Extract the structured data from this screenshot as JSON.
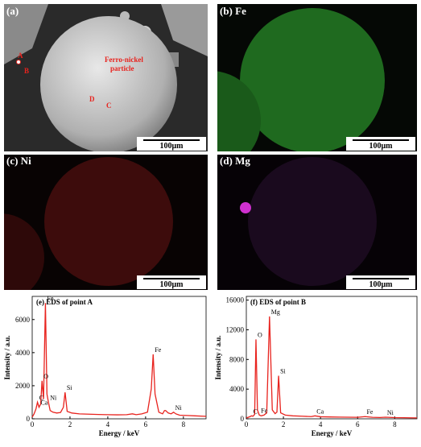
{
  "panels": [
    {
      "label": "(a)",
      "scale_bar": "100μm",
      "points": [
        "A",
        "B",
        "C",
        "D"
      ],
      "particle_label": [
        "Ferro-nickel",
        "particle"
      ]
    },
    {
      "label": "(b) Fe",
      "scale_bar": "100μm"
    },
    {
      "label": "(c) Ni",
      "scale_bar": "100μm"
    },
    {
      "label": "(d) Mg",
      "scale_bar": "100μm"
    }
  ],
  "chart_data": [
    {
      "type": "line",
      "title": "(e) EDS of point A",
      "x_label": "Energy / keV",
      "y_label": "Intensity / a.u.",
      "xlim": [
        0,
        9.2
      ],
      "xticks": [
        0,
        2,
        4,
        6,
        8
      ],
      "ylim": [
        0,
        7400
      ],
      "yticks": [
        0,
        2000,
        4000,
        6000
      ],
      "series": [
        {
          "color": "#e8231e",
          "x": [
            0,
            0.1,
            0.2,
            0.28,
            0.36,
            0.45,
            0.52,
            0.6,
            0.7,
            0.78,
            0.86,
            0.95,
            1.1,
            1.3,
            1.5,
            1.65,
            1.74,
            1.85,
            2.1,
            2.5,
            3,
            3.5,
            4,
            4.5,
            5,
            5.3,
            5.5,
            5.8,
            6.1,
            6.3,
            6.4,
            6.5,
            6.7,
            6.9,
            7.0,
            7.06,
            7.2,
            7.35,
            7.48,
            7.6,
            7.8,
            8.2,
            8.6,
            9.2
          ],
          "values": [
            100,
            300,
            600,
            1000,
            700,
            900,
            2300,
            1200,
            7000,
            1500,
            1000,
            500,
            400,
            350,
            380,
            700,
            1600,
            450,
            350,
            300,
            280,
            260,
            250,
            240,
            250,
            300,
            250,
            300,
            400,
            1800,
            3900,
            1500,
            400,
            300,
            500,
            500,
            350,
            300,
            400,
            300,
            220,
            200,
            180,
            150
          ]
        }
      ],
      "annotations": [
        {
          "text": "C",
          "x": 0.28
        },
        {
          "text": "Ca",
          "x": 0.36
        },
        {
          "text": "O",
          "x": 0.52
        },
        {
          "text": "Fe",
          "x": 0.7
        },
        {
          "text": "Ni",
          "x": 0.86
        },
        {
          "text": "Si",
          "x": 1.74
        },
        {
          "text": "Fe",
          "x": 6.4
        },
        {
          "text": "Ni",
          "x": 7.48
        }
      ]
    },
    {
      "type": "line",
      "title": "(f) EDS of point B",
      "x_label": "Energy / keV",
      "y_label": "Intensity / a.u.",
      "xlim": [
        0,
        9.2
      ],
      "xticks": [
        0,
        2,
        4,
        6,
        8
      ],
      "ylim": [
        0,
        16500
      ],
      "yticks": [
        0,
        4000,
        8000,
        12000,
        16000
      ],
      "series": [
        {
          "color": "#e8231e",
          "x": [
            0,
            0.1,
            0.2,
            0.28,
            0.36,
            0.45,
            0.52,
            0.6,
            0.7,
            0.8,
            0.95,
            1.1,
            1.25,
            1.4,
            1.55,
            1.65,
            1.74,
            1.85,
            2.1,
            2.5,
            3,
            3.5,
            3.7,
            4,
            4.5,
            5,
            5.5,
            6,
            6.4,
            6.8,
            7.2,
            7.5,
            8,
            8.5,
            9.2
          ],
          "values": [
            100,
            200,
            300,
            400,
            350,
            600,
            10700,
            1200,
            500,
            400,
            500,
            800,
            13800,
            1200,
            700,
            900,
            5800,
            800,
            500,
            400,
            350,
            300,
            400,
            280,
            250,
            230,
            220,
            200,
            300,
            200,
            180,
            220,
            160,
            150,
            120
          ]
        }
      ],
      "annotations": [
        {
          "text": "C",
          "x": 0.28
        },
        {
          "text": "O",
          "x": 0.52
        },
        {
          "text": "Fe",
          "x": 0.7
        },
        {
          "text": "Mg",
          "x": 1.25
        },
        {
          "text": "Si",
          "x": 1.74
        },
        {
          "text": "Ca",
          "x": 3.7
        },
        {
          "text": "Fe",
          "x": 6.4
        },
        {
          "text": "Ni",
          "x": 7.5
        }
      ]
    }
  ]
}
